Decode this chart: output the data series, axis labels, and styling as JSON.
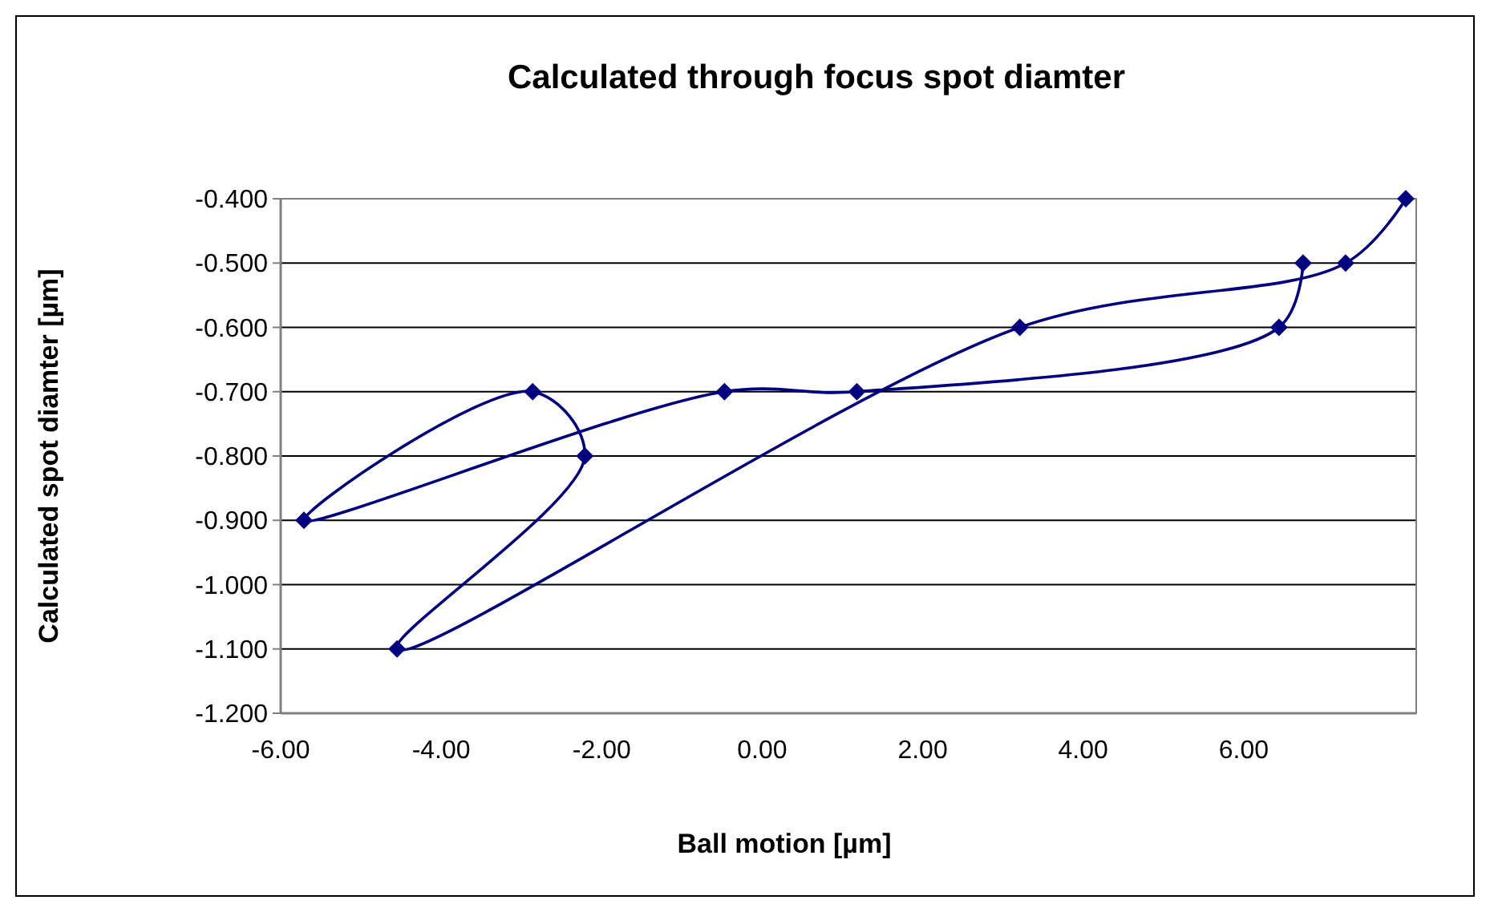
{
  "chart_data": {
    "type": "line",
    "title": "Calculated through focus spot diamter",
    "xlabel": "Ball motion [µm]",
    "ylabel": "Calculated spot diamter [µm]",
    "series": [
      {
        "color": "#000080",
        "x": [
          6.74,
          6.44,
          1.18,
          -0.47,
          -5.71,
          -2.86,
          -2.21,
          -4.55,
          3.21,
          7.27,
          8.02
        ],
        "values": [
          -0.5,
          -0.6,
          -0.7,
          -0.7,
          -0.9,
          -0.7,
          -0.8,
          -1.1,
          -0.6,
          -0.5,
          -0.4
        ]
      }
    ],
    "xlim": [
      -6,
      8.15
    ],
    "xticks": [
      {
        "value": -6,
        "label": "-6.00"
      },
      {
        "value": -4,
        "label": "-4.00"
      },
      {
        "value": -2,
        "label": "-2.00"
      },
      {
        "value": 0,
        "label": "0.00"
      },
      {
        "value": 2,
        "label": "2.00"
      },
      {
        "value": 4,
        "label": "4.00"
      },
      {
        "value": 6,
        "label": "6.00"
      }
    ],
    "ylim": [
      -1.2,
      -0.4
    ],
    "yticks": [
      {
        "value": -1.2,
        "label": "-1.200"
      },
      {
        "value": -1.1,
        "label": "-1.100"
      },
      {
        "value": -1.0,
        "label": "-1.000"
      },
      {
        "value": -0.9,
        "label": "-0.900"
      },
      {
        "value": -0.8,
        "label": "-0.800"
      },
      {
        "value": -0.7,
        "label": "-0.700"
      },
      {
        "value": -0.6,
        "label": "-0.600"
      },
      {
        "value": -0.5,
        "label": "-0.500"
      },
      {
        "value": -0.4,
        "label": "-0.400"
      }
    ],
    "grid": "y",
    "marker": "diamond",
    "line_style": "solid"
  }
}
